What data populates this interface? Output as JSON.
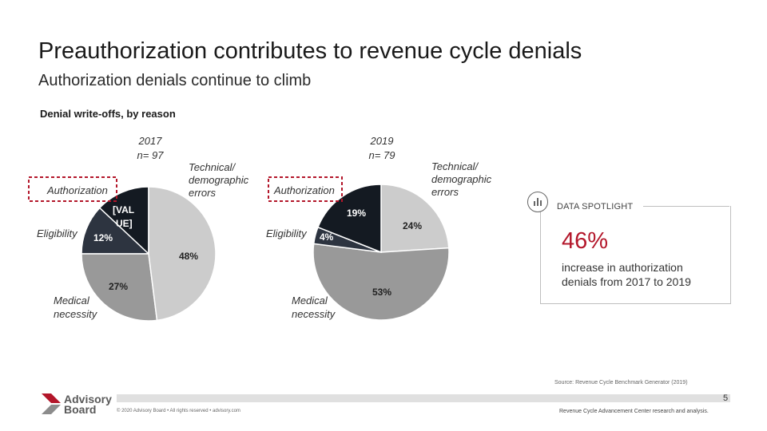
{
  "header": {
    "title": "Preauthorization contributes to revenue cycle denials",
    "subtitle": "Authorization denials continue to climb"
  },
  "chart_heading": "Denial write-offs, by reason",
  "chart_data": [
    {
      "type": "pie",
      "year": "2017",
      "n": "n= 97",
      "slices": [
        {
          "label": "Authorization",
          "value_label": "[VAL UE]",
          "value": 13,
          "color": "#141a22"
        },
        {
          "label": "Eligibility",
          "value_label": "12%",
          "value": 12,
          "color": "#2d3440"
        },
        {
          "label": "Medical necessity",
          "value_label": "27%",
          "value": 27,
          "color": "#999999"
        },
        {
          "label": "Technical/ demographic errors",
          "value_label": "48%",
          "value": 48,
          "color": "#cccccc"
        }
      ]
    },
    {
      "type": "pie",
      "year": "2019",
      "n": "n= 79",
      "slices": [
        {
          "label": "Technical/ demographic errors",
          "value_label": "24%",
          "value": 24,
          "color": "#cccccc"
        },
        {
          "label": "Medical necessity",
          "value_label": "53%",
          "value": 53,
          "color": "#999999"
        },
        {
          "label": "Eligibility",
          "value_label": "4%",
          "value": 4,
          "color": "#2d3440"
        },
        {
          "label": "Authorization",
          "value_label": "19%",
          "value": 19,
          "color": "#141a22"
        }
      ]
    }
  ],
  "labels": {
    "authorization": "Authorization",
    "eligibility": "Eligibility",
    "medical_1": "Medical",
    "medical_2": "necessity",
    "tech_1": "Technical/",
    "tech_2": "demographic",
    "tech_3": "errors",
    "val_1": "[VAL",
    "val_2": "UE]"
  },
  "spotlight": {
    "label": "DATA SPOTLIGHT",
    "value": "46%",
    "text": "increase in authorization denials from 2017 to 2019",
    "icon": "magnifier-chart-icon"
  },
  "source": "Source: Revenue Cycle Benchmark Generator (2019)",
  "footer": {
    "logo_line1": "Advisory",
    "logo_line2": "Board",
    "copyright": "© 2020 Advisory Board • All rights reserved • advisory.com",
    "page_number": "5",
    "right_text": "Revenue Cycle Advancement Center research and analysis."
  },
  "colors": {
    "accent": "#b3162a",
    "dark_slice": "#141a22",
    "eligibility_slice": "#2d3440",
    "medical_slice": "#999999",
    "tech_slice": "#cccccc"
  }
}
